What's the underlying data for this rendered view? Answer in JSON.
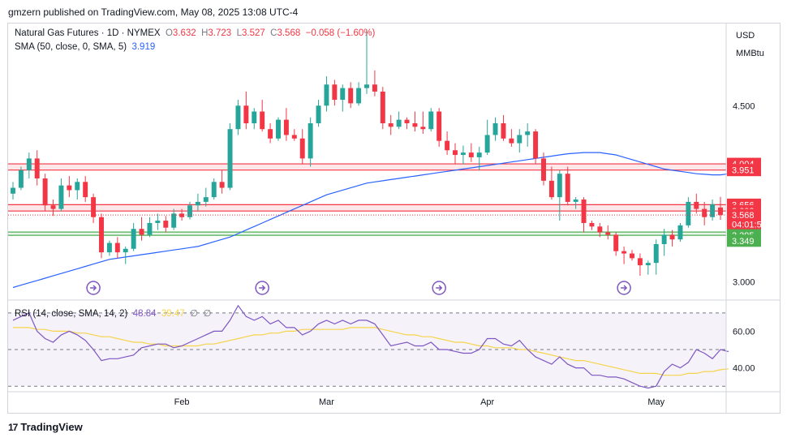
{
  "caption": "gmzern published on TradingView.com, May 08, 2025 13:08 UTC-4",
  "legend": {
    "symbol": "Natural Gas Futures · 1D · NYMEX",
    "open_label": "O",
    "open": "3.632",
    "high_label": "H",
    "high": "3.723",
    "low_label": "L",
    "low": "3.527",
    "close_label": "C",
    "close": "3.568",
    "change": "−0.058 (−1.60%)",
    "sma_label": "SMA (50, close, 0, SMA, 5)",
    "sma_value": "3.919"
  },
  "rsi_legend": {
    "label": "RSI (14, close, SMA, 14, 2)",
    "rsi": "48.84",
    "rsi_ma": "39.47",
    "extra1": "∅",
    "extra2": "∅"
  },
  "units": {
    "currency": "USD",
    "unit": "MMBtu"
  },
  "footer": {
    "brand": "TradingView",
    "logo": "17"
  },
  "colors": {
    "up": "#26a69a",
    "down": "#f23645",
    "sma": "#2962ff",
    "rsi": "#7e57c2",
    "rsi_ma": "#f5d44a"
  },
  "chart_data": [
    {
      "type": "candlestick",
      "ylim": [
        2.85,
        5.2
      ],
      "yticks": [
        "4.500",
        "3.000"
      ],
      "xticks": [
        {
          "label": "Feb",
          "index": 21
        },
        {
          "label": "Mar",
          "index": 39
        },
        {
          "label": "Apr",
          "index": 59
        },
        {
          "label": "May",
          "index": 80
        }
      ],
      "price_labels": [
        {
          "text": "4.004",
          "value": 4.004,
          "color": "#f23645"
        },
        {
          "text": "3.951",
          "value": 3.951,
          "color": "#f23645"
        },
        {
          "text": "3.656",
          "value": 3.656,
          "color": "#f23645"
        },
        {
          "text": "3.602",
          "value": 3.602,
          "color": "#f23645"
        },
        {
          "text": "3.568",
          "value": 3.568,
          "color": "#f23645"
        },
        {
          "text": "04:01:56",
          "value": 3.49,
          "color": "#f23645"
        },
        {
          "text": "3.395",
          "value": 3.395,
          "color": "#4caf50"
        },
        {
          "text": "3.349",
          "value": 3.349,
          "color": "#4caf50"
        }
      ],
      "bands": [
        {
          "from": 3.951,
          "to": 4.004,
          "color": "#f23645"
        },
        {
          "from": 3.602,
          "to": 3.656,
          "color": "#f23645"
        },
        {
          "from": 3.395,
          "to": 3.423,
          "color": "#4caf50"
        }
      ],
      "event_markers": [
        10,
        31,
        53,
        76
      ],
      "candles": [
        [
          3.75,
          3.85,
          3.7,
          3.8
        ],
        [
          3.8,
          3.98,
          3.78,
          3.95
        ],
        [
          3.95,
          4.1,
          3.88,
          4.05
        ],
        [
          4.05,
          4.12,
          3.82,
          3.88
        ],
        [
          3.88,
          3.92,
          3.6,
          3.65
        ],
        [
          3.65,
          3.7,
          3.56,
          3.62
        ],
        [
          3.62,
          3.88,
          3.6,
          3.82
        ],
        [
          3.82,
          3.9,
          3.72,
          3.78
        ],
        [
          3.78,
          3.88,
          3.7,
          3.85
        ],
        [
          3.85,
          3.9,
          3.68,
          3.72
        ],
        [
          3.72,
          3.75,
          3.5,
          3.55
        ],
        [
          3.55,
          3.58,
          3.2,
          3.25
        ],
        [
          3.25,
          3.35,
          3.22,
          3.33
        ],
        [
          3.33,
          3.38,
          3.2,
          3.25
        ],
        [
          3.25,
          3.3,
          3.15,
          3.28
        ],
        [
          3.28,
          3.5,
          3.26,
          3.45
        ],
        [
          3.45,
          3.55,
          3.35,
          3.4
        ],
        [
          3.4,
          3.55,
          3.38,
          3.5
        ],
        [
          3.5,
          3.58,
          3.44,
          3.52
        ],
        [
          3.52,
          3.56,
          3.42,
          3.46
        ],
        [
          3.46,
          3.62,
          3.44,
          3.58
        ],
        [
          3.58,
          3.62,
          3.52,
          3.55
        ],
        [
          3.55,
          3.68,
          3.53,
          3.65
        ],
        [
          3.65,
          3.75,
          3.6,
          3.68
        ],
        [
          3.68,
          3.8,
          3.64,
          3.72
        ],
        [
          3.72,
          3.88,
          3.7,
          3.85
        ],
        [
          3.85,
          3.95,
          3.75,
          3.8
        ],
        [
          3.8,
          4.35,
          3.78,
          4.3
        ],
        [
          4.3,
          4.55,
          4.25,
          4.5
        ],
        [
          4.5,
          4.62,
          4.3,
          4.35
        ],
        [
          4.35,
          4.48,
          4.3,
          4.45
        ],
        [
          4.45,
          4.55,
          4.28,
          4.3
        ],
        [
          4.3,
          4.35,
          4.18,
          4.22
        ],
        [
          4.22,
          4.4,
          4.2,
          4.38
        ],
        [
          4.38,
          4.48,
          4.2,
          4.25
        ],
        [
          4.25,
          4.3,
          4.2,
          4.22
        ],
        [
          4.22,
          4.3,
          4.0,
          4.05
        ],
        [
          4.05,
          4.4,
          3.98,
          4.35
        ],
        [
          4.35,
          4.55,
          4.32,
          4.5
        ],
        [
          4.5,
          4.75,
          4.45,
          4.68
        ],
        [
          4.68,
          4.72,
          4.5,
          4.55
        ],
        [
          4.55,
          4.68,
          4.45,
          4.65
        ],
        [
          4.65,
          4.7,
          4.48,
          4.52
        ],
        [
          4.52,
          4.7,
          4.5,
          4.65
        ],
        [
          4.65,
          5.15,
          4.6,
          4.68
        ],
        [
          4.68,
          4.8,
          4.58,
          4.62
        ],
        [
          4.62,
          4.66,
          4.3,
          4.35
        ],
        [
          4.35,
          4.42,
          4.25,
          4.32
        ],
        [
          4.32,
          4.45,
          4.3,
          4.38
        ],
        [
          4.38,
          4.4,
          4.3,
          4.35
        ],
        [
          4.35,
          4.45,
          4.28,
          4.32
        ],
        [
          4.32,
          4.45,
          4.26,
          4.3
        ],
        [
          4.3,
          4.48,
          4.28,
          4.45
        ],
        [
          4.45,
          4.48,
          4.15,
          4.2
        ],
        [
          4.2,
          4.28,
          4.08,
          4.12
        ],
        [
          4.12,
          4.18,
          4.0,
          4.08
        ],
        [
          4.08,
          4.16,
          4.0,
          4.1
        ],
        [
          4.1,
          4.18,
          4.02,
          4.06
        ],
        [
          4.06,
          4.15,
          3.95,
          4.1
        ],
        [
          4.1,
          4.38,
          4.08,
          4.25
        ],
        [
          4.25,
          4.4,
          4.2,
          4.35
        ],
        [
          4.35,
          4.42,
          4.2,
          4.22
        ],
        [
          4.22,
          4.3,
          4.15,
          4.18
        ],
        [
          4.18,
          4.3,
          4.1,
          4.25
        ],
        [
          4.25,
          4.35,
          4.15,
          4.28
        ],
        [
          4.28,
          4.3,
          4.0,
          4.05
        ],
        [
          4.05,
          4.1,
          3.82,
          3.86
        ],
        [
          3.86,
          3.98,
          3.7,
          3.72
        ],
        [
          3.72,
          3.95,
          3.52,
          3.92
        ],
        [
          3.92,
          3.98,
          3.65,
          3.68
        ],
        [
          3.68,
          3.72,
          3.62,
          3.7
        ],
        [
          3.7,
          3.72,
          3.42,
          3.5
        ],
        [
          3.5,
          3.52,
          3.44,
          3.47
        ],
        [
          3.47,
          3.5,
          3.38,
          3.42
        ],
        [
          3.42,
          3.48,
          3.36,
          3.4
        ],
        [
          3.4,
          3.42,
          3.22,
          3.26
        ],
        [
          3.26,
          3.3,
          3.15,
          3.24
        ],
        [
          3.24,
          3.27,
          3.18,
          3.2
        ],
        [
          3.2,
          3.24,
          3.05,
          3.14
        ],
        [
          3.14,
          3.18,
          3.06,
          3.16
        ],
        [
          3.16,
          3.36,
          3.06,
          3.32
        ],
        [
          3.32,
          3.45,
          3.22,
          3.4
        ],
        [
          3.4,
          3.44,
          3.3,
          3.36
        ],
        [
          3.36,
          3.5,
          3.34,
          3.48
        ],
        [
          3.48,
          3.72,
          3.46,
          3.68
        ],
        [
          3.68,
          3.75,
          3.58,
          3.62
        ],
        [
          3.62,
          3.68,
          3.48,
          3.55
        ],
        [
          3.55,
          3.7,
          3.52,
          3.66
        ],
        [
          3.632,
          3.723,
          3.527,
          3.568
        ]
      ],
      "sma": [
        2.95,
        2.97,
        2.99,
        3.01,
        3.03,
        3.05,
        3.07,
        3.09,
        3.11,
        3.13,
        3.15,
        3.17,
        3.19,
        3.2,
        3.21,
        3.22,
        3.23,
        3.24,
        3.25,
        3.26,
        3.27,
        3.28,
        3.29,
        3.3,
        3.32,
        3.34,
        3.36,
        3.38,
        3.41,
        3.44,
        3.47,
        3.5,
        3.53,
        3.56,
        3.59,
        3.62,
        3.65,
        3.68,
        3.71,
        3.74,
        3.76,
        3.78,
        3.8,
        3.82,
        3.84,
        3.85,
        3.86,
        3.87,
        3.88,
        3.89,
        3.9,
        3.91,
        3.92,
        3.93,
        3.94,
        3.95,
        3.96,
        3.97,
        3.98,
        3.99,
        4.0,
        4.01,
        4.02,
        4.03,
        4.04,
        4.05,
        4.06,
        4.07,
        4.08,
        4.09,
        4.095,
        4.1,
        4.1,
        4.1,
        4.09,
        4.08,
        4.06,
        4.04,
        4.02,
        4.0,
        3.98,
        3.96,
        3.95,
        3.94,
        3.93,
        3.92,
        3.915,
        3.91,
        3.91,
        3.919
      ]
    },
    {
      "type": "line",
      "title": "RSI",
      "ylim": [
        27,
        77
      ],
      "yticks": [
        "60.00",
        "40.00"
      ],
      "bands": {
        "upper": 70,
        "middle": 50,
        "lower": 30
      },
      "series": [
        {
          "name": "RSI",
          "values": [
            66,
            68,
            70,
            60,
            56,
            54,
            58,
            60,
            58,
            55,
            50,
            44,
            45,
            45,
            46,
            47,
            51,
            52,
            53,
            53,
            51,
            52,
            54,
            56,
            58,
            60,
            60,
            66,
            74,
            68,
            66,
            68,
            64,
            66,
            62,
            62,
            58,
            60,
            64,
            66,
            64,
            66,
            64,
            66,
            66,
            64,
            58,
            52,
            53,
            54,
            52,
            52,
            54,
            50,
            50,
            49,
            48,
            48,
            50,
            56,
            56,
            53,
            52,
            55,
            50,
            46,
            44,
            42,
            46,
            42,
            40,
            40,
            36,
            36,
            35,
            35,
            34,
            32,
            30,
            29,
            30,
            38,
            42,
            40,
            43,
            50,
            48,
            45,
            50,
            48.84
          ]
        },
        {
          "name": "RSI MA",
          "values": [
            62,
            62,
            62,
            61,
            61,
            60,
            60,
            60,
            59,
            59,
            58,
            57,
            57,
            56,
            55,
            54,
            54,
            53,
            53,
            52,
            52,
            52,
            52,
            52,
            53,
            53,
            54,
            55,
            56,
            57,
            58,
            58,
            59,
            59,
            60,
            60,
            61,
            61,
            61,
            61,
            61,
            61,
            62,
            62,
            62,
            62,
            61,
            60,
            59,
            58,
            58,
            57,
            57,
            56,
            55,
            54,
            54,
            53,
            52,
            52,
            51,
            51,
            51,
            50,
            50,
            49,
            48,
            47,
            46,
            45,
            44,
            44,
            43,
            42,
            41,
            40,
            39,
            38,
            37,
            37,
            37,
            36,
            36,
            36,
            37,
            37,
            38,
            38,
            39,
            39.47
          ]
        }
      ]
    }
  ]
}
